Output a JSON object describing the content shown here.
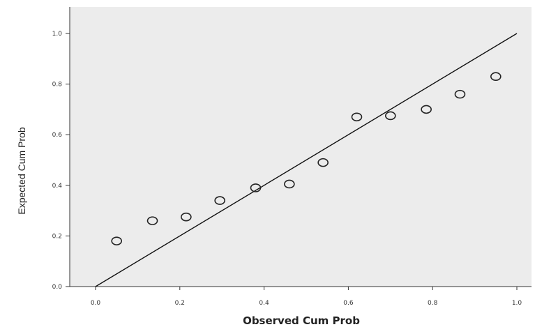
{
  "chart_data": {
    "type": "scatter",
    "title": "",
    "xlabel": "Observed Cum Prob",
    "ylabel": "Expected Cum Prob",
    "xlim": [
      0.0,
      1.0
    ],
    "ylim": [
      0.0,
      1.0
    ],
    "xticks": [
      "0.0",
      "0.2",
      "0.4",
      "0.6",
      "0.8",
      "1.0"
    ],
    "yticks": [
      "0.0",
      "0.2",
      "0.4",
      "0.6",
      "0.8",
      "1.0"
    ],
    "grid": false,
    "legend": "none",
    "reference_line": {
      "from": [
        0.0,
        0.0
      ],
      "to": [
        1.0,
        1.0
      ]
    },
    "points": [
      {
        "x": 0.05,
        "y": 0.18
      },
      {
        "x": 0.135,
        "y": 0.26
      },
      {
        "x": 0.215,
        "y": 0.275
      },
      {
        "x": 0.295,
        "y": 0.34
      },
      {
        "x": 0.38,
        "y": 0.39
      },
      {
        "x": 0.46,
        "y": 0.405
      },
      {
        "x": 0.54,
        "y": 0.49
      },
      {
        "x": 0.62,
        "y": 0.67
      },
      {
        "x": 0.7,
        "y": 0.675
      },
      {
        "x": 0.785,
        "y": 0.7
      },
      {
        "x": 0.865,
        "y": 0.76
      },
      {
        "x": 0.95,
        "y": 0.83
      }
    ],
    "colors": {
      "plot_background": "#ececec",
      "marker_stroke": "#222222",
      "line": "#111111"
    }
  }
}
